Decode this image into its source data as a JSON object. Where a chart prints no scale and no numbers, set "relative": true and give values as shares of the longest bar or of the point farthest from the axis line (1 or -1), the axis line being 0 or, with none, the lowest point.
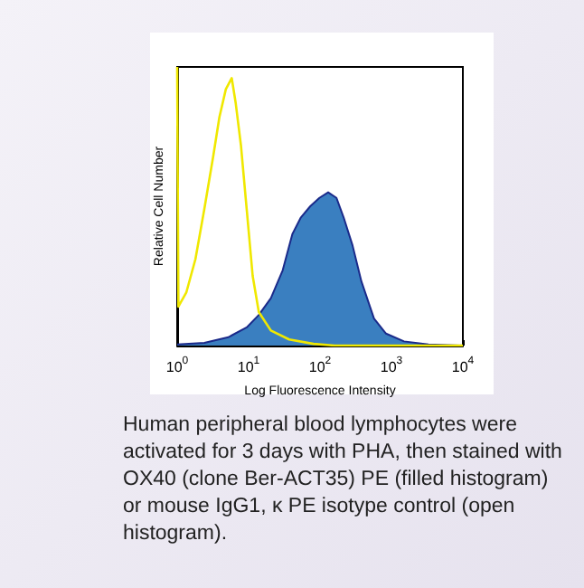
{
  "chart_data": {
    "type": "area",
    "xlabel": "Log Fluorescence Intensity",
    "ylabel": "Relative Cell Number",
    "log": "x",
    "relative": true,
    "xlim": [
      1,
      10000
    ],
    "xticks": [
      {
        "value": 1,
        "label": "10$^{0}$"
      },
      {
        "value": 10,
        "label": "10$^{1}$"
      },
      {
        "value": 100,
        "label": "10$^{2}$"
      },
      {
        "value": 1000,
        "label": "10$^{3}$"
      },
      {
        "value": 10000,
        "label": "10$^{4}$"
      }
    ],
    "grid": false,
    "marker": "none",
    "line_style": "solid",
    "series": [
      {
        "color": "#3a7fc0",
        "x": [
          1,
          2.4,
          5.2,
          9.4,
          13.9,
          20.5,
          30,
          41,
          54,
          73,
          98,
          130,
          170,
          214,
          285,
          380,
          570,
          840,
          1500,
          3300,
          10000
        ],
        "values": [
          0.004,
          0.01,
          0.03,
          0.065,
          0.11,
          0.17,
          0.27,
          0.4,
          0.46,
          0.5,
          0.53,
          0.55,
          0.53,
          0.46,
          0.36,
          0.23,
          0.097,
          0.043,
          0.015,
          0.004,
          0
        ]
      },
      {
        "type": "line",
        "color": "#f0e800",
        "x": [
          1,
          1.04,
          1.34,
          1.8,
          2.4,
          3.2,
          3.9,
          4.8,
          5.8,
          6.6,
          7.8,
          9.4,
          11.4,
          13.9,
          20.5,
          37,
          81,
          160,
          10000
        ],
        "values": [
          1,
          0.14,
          0.19,
          0.31,
          0.49,
          0.68,
          0.82,
          0.92,
          0.96,
          0.87,
          0.72,
          0.49,
          0.25,
          0.12,
          0.054,
          0.022,
          0.006,
          0,
          0
        ]
      }
    ],
    "annotations": [
      "Human peripheral blood lymphocytes were activated for 3 days with PHA, then stained with OX40 (clone Ber-ACT35) PE (filled histogram) or mouse IgG1, κ PE isotype control (open histogram)."
    ]
  }
}
